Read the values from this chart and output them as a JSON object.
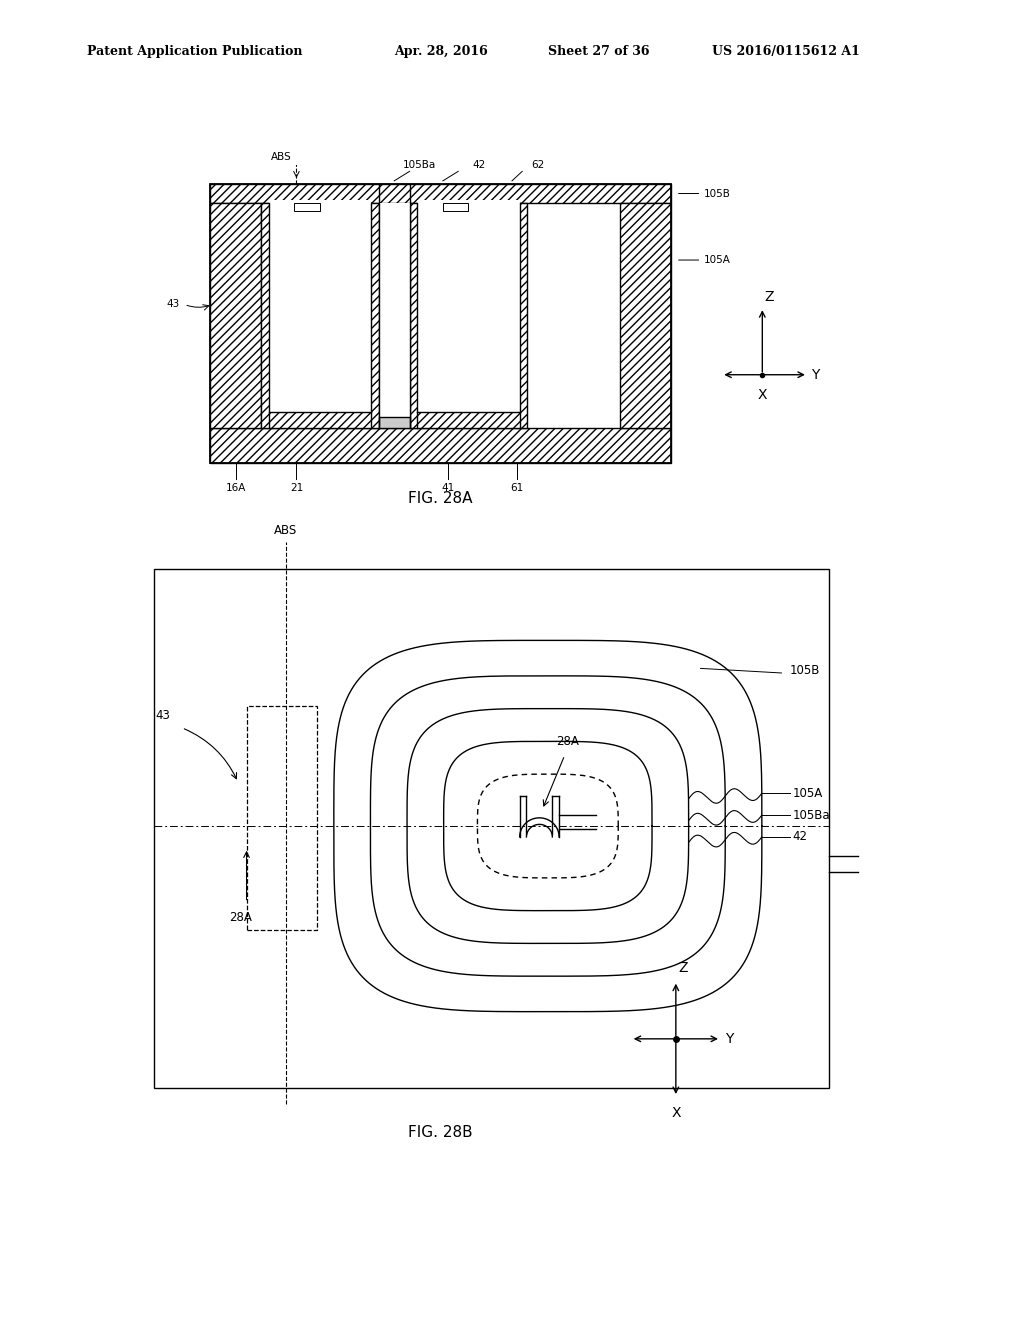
{
  "bg_color": "#ffffff",
  "fig_width": 10.24,
  "fig_height": 13.2,
  "header_text": "Patent Application Publication",
  "header_date": "Apr. 28, 2016",
  "header_sheet": "Sheet 27 of 36",
  "header_patent": "US 2016/0115612 A1",
  "fig28a_title": "FIG. 28A",
  "fig28b_title": "FIG. 28B",
  "line_color": "#000000"
}
